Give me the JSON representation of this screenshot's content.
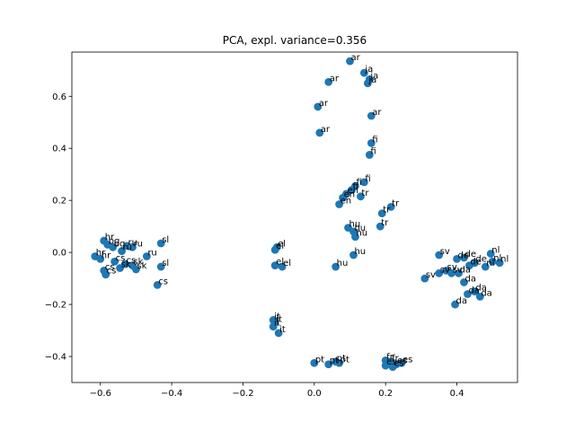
{
  "chart_data": {
    "type": "scatter",
    "title": "PCA, expl. variance=0.356",
    "xlabel": "",
    "ylabel": "",
    "xlim": [
      -0.68,
      0.57
    ],
    "ylim": [
      -0.5,
      0.77
    ],
    "xticks": [
      -0.6,
      -0.4,
      -0.2,
      0.0,
      0.2,
      0.4
    ],
    "xtick_labels": [
      "−0.6",
      "−0.4",
      "−0.2",
      "0.0",
      "0.2",
      "0.4"
    ],
    "yticks": [
      -0.4,
      -0.2,
      0.0,
      0.2,
      0.4,
      0.6
    ],
    "ytick_labels": [
      "−0.4",
      "−0.2",
      "0.0",
      "0.2",
      "0.4",
      "0.6"
    ],
    "grid": false,
    "marker_color": "#1f77b4",
    "points": [
      {
        "label": "ar",
        "x": 0.1,
        "y": 0.735
      },
      {
        "label": "ja",
        "x": 0.14,
        "y": 0.69
      },
      {
        "label": "ja",
        "x": 0.155,
        "y": 0.665
      },
      {
        "label": "ja",
        "x": 0.15,
        "y": 0.65
      },
      {
        "label": "ar",
        "x": 0.04,
        "y": 0.655
      },
      {
        "label": "ar",
        "x": 0.01,
        "y": 0.56
      },
      {
        "label": "ar",
        "x": 0.16,
        "y": 0.525
      },
      {
        "label": "ar",
        "x": 0.015,
        "y": 0.46
      },
      {
        "label": "fi",
        "x": 0.16,
        "y": 0.42
      },
      {
        "label": "fi",
        "x": 0.155,
        "y": 0.375
      },
      {
        "label": "fi",
        "x": 0.14,
        "y": 0.27
      },
      {
        "label": "fi",
        "x": 0.115,
        "y": 0.255
      },
      {
        "label": "fi",
        "x": 0.105,
        "y": 0.24
      },
      {
        "label": "en",
        "x": 0.09,
        "y": 0.225
      },
      {
        "label": "tr",
        "x": 0.13,
        "y": 0.215
      },
      {
        "label": "en",
        "x": 0.08,
        "y": 0.21
      },
      {
        "label": "en",
        "x": 0.07,
        "y": 0.185
      },
      {
        "label": "tr",
        "x": 0.215,
        "y": 0.175
      },
      {
        "label": "tr",
        "x": 0.19,
        "y": 0.15
      },
      {
        "label": "tr",
        "x": 0.185,
        "y": 0.1
      },
      {
        "label": "hu",
        "x": 0.095,
        "y": 0.095
      },
      {
        "label": "hu",
        "x": 0.11,
        "y": 0.08
      },
      {
        "label": "hu",
        "x": 0.115,
        "y": 0.06
      },
      {
        "label": "hu",
        "x": 0.11,
        "y": -0.01
      },
      {
        "label": "hu",
        "x": 0.06,
        "y": -0.055
      },
      {
        "label": "el",
        "x": -0.105,
        "y": 0.02
      },
      {
        "label": "el",
        "x": -0.11,
        "y": 0.01
      },
      {
        "label": "el",
        "x": -0.11,
        "y": -0.05
      },
      {
        "label": "el",
        "x": -0.09,
        "y": -0.055
      },
      {
        "label": "it",
        "x": -0.115,
        "y": -0.26
      },
      {
        "label": "it",
        "x": -0.11,
        "y": -0.27
      },
      {
        "label": "it",
        "x": -0.115,
        "y": -0.285
      },
      {
        "label": "it",
        "x": -0.1,
        "y": -0.31
      },
      {
        "label": "pt",
        "x": 0.0,
        "y": -0.425
      },
      {
        "label": "pt",
        "x": 0.04,
        "y": -0.43
      },
      {
        "label": "pt",
        "x": 0.06,
        "y": -0.42
      },
      {
        "label": "pt",
        "x": 0.07,
        "y": -0.425
      },
      {
        "label": "fr",
        "x": 0.2,
        "y": -0.415
      },
      {
        "label": "fr",
        "x": 0.215,
        "y": -0.42
      },
      {
        "label": "es",
        "x": 0.23,
        "y": -0.43
      },
      {
        "label": "es",
        "x": 0.245,
        "y": -0.425
      },
      {
        "label": "es",
        "x": 0.22,
        "y": -0.44
      },
      {
        "label": "es",
        "x": 0.2,
        "y": -0.435
      },
      {
        "label": "sv",
        "x": 0.35,
        "y": -0.01
      },
      {
        "label": "sv",
        "x": 0.35,
        "y": -0.08
      },
      {
        "label": "sv",
        "x": 0.31,
        "y": -0.1
      },
      {
        "label": "sv",
        "x": 0.37,
        "y": -0.07
      },
      {
        "label": "sv",
        "x": 0.385,
        "y": -0.08
      },
      {
        "label": "de",
        "x": 0.4,
        "y": -0.025
      },
      {
        "label": "de",
        "x": 0.42,
        "y": -0.02
      },
      {
        "label": "de",
        "x": 0.435,
        "y": -0.05
      },
      {
        "label": "de",
        "x": 0.45,
        "y": -0.04
      },
      {
        "label": "nl",
        "x": 0.495,
        "y": -0.005
      },
      {
        "label": "nl",
        "x": 0.5,
        "y": -0.035
      },
      {
        "label": "nl",
        "x": 0.52,
        "y": -0.04
      },
      {
        "label": "nl",
        "x": 0.48,
        "y": -0.055
      },
      {
        "label": "da",
        "x": 0.405,
        "y": -0.08
      },
      {
        "label": "da",
        "x": 0.42,
        "y": -0.115
      },
      {
        "label": "da",
        "x": 0.43,
        "y": -0.16
      },
      {
        "label": "da",
        "x": 0.45,
        "y": -0.15
      },
      {
        "label": "da",
        "x": 0.465,
        "y": -0.17
      },
      {
        "label": "da",
        "x": 0.395,
        "y": -0.2
      },
      {
        "label": "hr",
        "x": -0.59,
        "y": 0.045
      },
      {
        "label": "bg",
        "x": -0.58,
        "y": 0.03
      },
      {
        "label": "bg",
        "x": -0.565,
        "y": 0.02
      },
      {
        "label": "ru",
        "x": -0.525,
        "y": 0.025
      },
      {
        "label": "ru",
        "x": -0.51,
        "y": 0.02
      },
      {
        "label": "ru",
        "x": -0.54,
        "y": 0.005
      },
      {
        "label": "ru",
        "x": -0.47,
        "y": -0.015
      },
      {
        "label": "sl",
        "x": -0.43,
        "y": 0.035
      },
      {
        "label": "sl",
        "x": -0.43,
        "y": -0.055
      },
      {
        "label": "hr",
        "x": -0.615,
        "y": -0.015
      },
      {
        "label": "hr",
        "x": -0.6,
        "y": -0.025
      },
      {
        "label": "cs",
        "x": -0.56,
        "y": -0.035
      },
      {
        "label": "cs",
        "x": -0.53,
        "y": -0.045
      },
      {
        "label": "sk",
        "x": -0.51,
        "y": -0.05
      },
      {
        "label": "sk",
        "x": -0.5,
        "y": -0.065
      },
      {
        "label": "cs",
        "x": -0.59,
        "y": -0.07
      },
      {
        "label": "cs",
        "x": -0.585,
        "y": -0.085
      },
      {
        "label": "sk",
        "x": -0.545,
        "y": -0.06
      },
      {
        "label": "cs",
        "x": -0.44,
        "y": -0.125
      }
    ]
  }
}
